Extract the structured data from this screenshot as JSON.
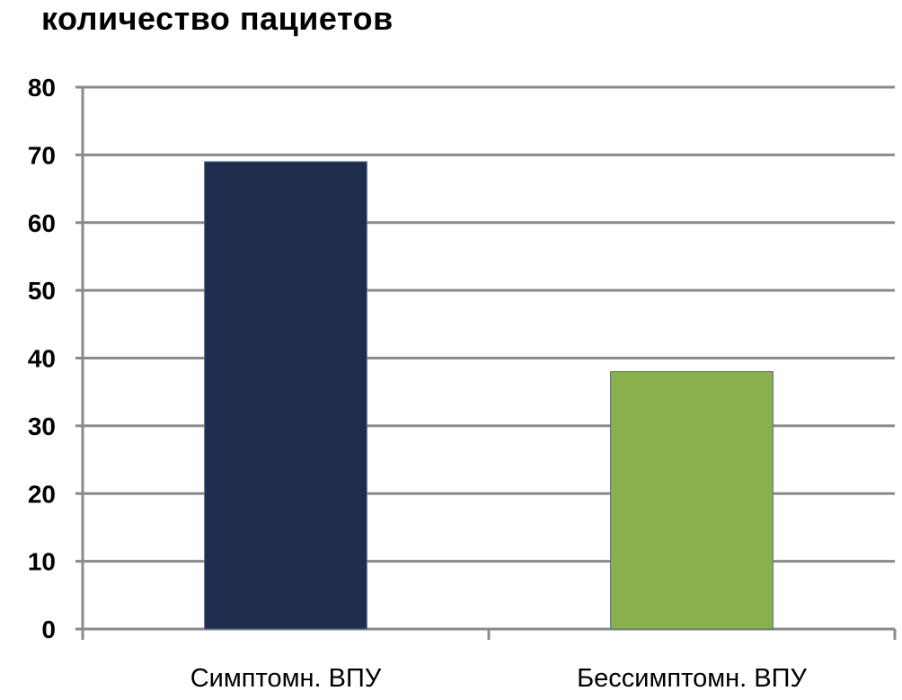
{
  "chart_data": {
    "type": "bar",
    "title": "количество пациетов",
    "categories": [
      "Симптомн. ВПУ",
      "Бессимптомн. ВПУ"
    ],
    "values": [
      69,
      38
    ],
    "colors": [
      "#1f2d4e",
      "#8ab04e"
    ],
    "ylim": [
      0,
      80
    ],
    "yticks": [
      0,
      10,
      20,
      30,
      40,
      50,
      60,
      70,
      80
    ],
    "grid": true,
    "legend": "none"
  }
}
